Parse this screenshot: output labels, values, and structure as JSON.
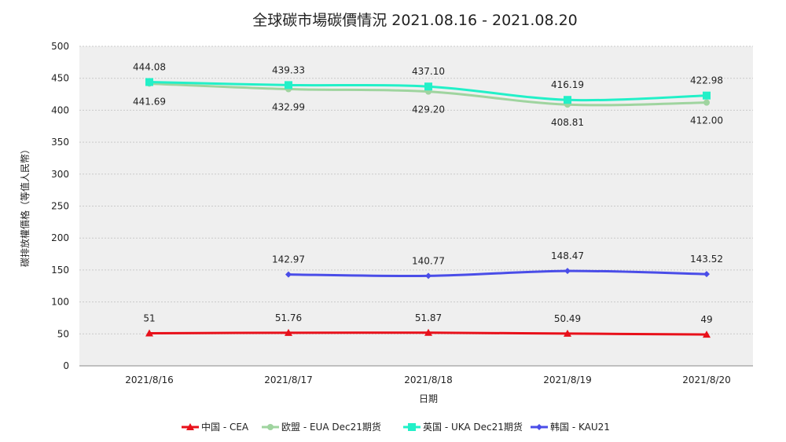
{
  "chart_data": {
    "type": "line",
    "title": "全球碳市場碳價情況 2021.08.16 - 2021.08.20",
    "xlabel": "日期",
    "ylabel": "碳排放權價格（等值人民幣）",
    "categories": [
      "2021/8/16",
      "2021/8/17",
      "2021/8/18",
      "2021/8/19",
      "2021/8/20"
    ],
    "ylim": [
      0,
      500
    ],
    "yticks": [
      0,
      50,
      100,
      150,
      200,
      250,
      300,
      350,
      400,
      450,
      500
    ],
    "grid": true,
    "legend_position": "bottom",
    "series": [
      {
        "name": "中国 - CEA",
        "color": "#e8101a",
        "marker": "triangle",
        "values": [
          51,
          51.76,
          51.87,
          50.49,
          49
        ],
        "labels": [
          "51",
          "51.76",
          "51.87",
          "50.49",
          "49"
        ],
        "label_pos": "above"
      },
      {
        "name": "欧盟 - EUA Dec21期货",
        "color": "#9fd49f",
        "marker": "circle",
        "values": [
          441.69,
          432.99,
          429.2,
          408.81,
          412.0
        ],
        "labels": [
          "441.69",
          "432.99",
          "429.20",
          "408.81",
          "412.00"
        ],
        "label_pos": "below"
      },
      {
        "name": "英国 - UKA Dec21期货",
        "color": "#22f0c8",
        "marker": "square",
        "values": [
          444.08,
          439.33,
          437.1,
          416.19,
          422.98
        ],
        "labels": [
          "444.08",
          "439.33",
          "437.10",
          "416.19",
          "422.98"
        ],
        "label_pos": "above"
      },
      {
        "name": "韩国 - KAU21",
        "color": "#4a4de8",
        "marker": "diamond",
        "values": [
          null,
          142.97,
          140.77,
          148.47,
          143.52
        ],
        "labels": [
          null,
          "142.97",
          "140.77",
          "148.47",
          "143.52"
        ],
        "label_pos": "above"
      }
    ]
  }
}
